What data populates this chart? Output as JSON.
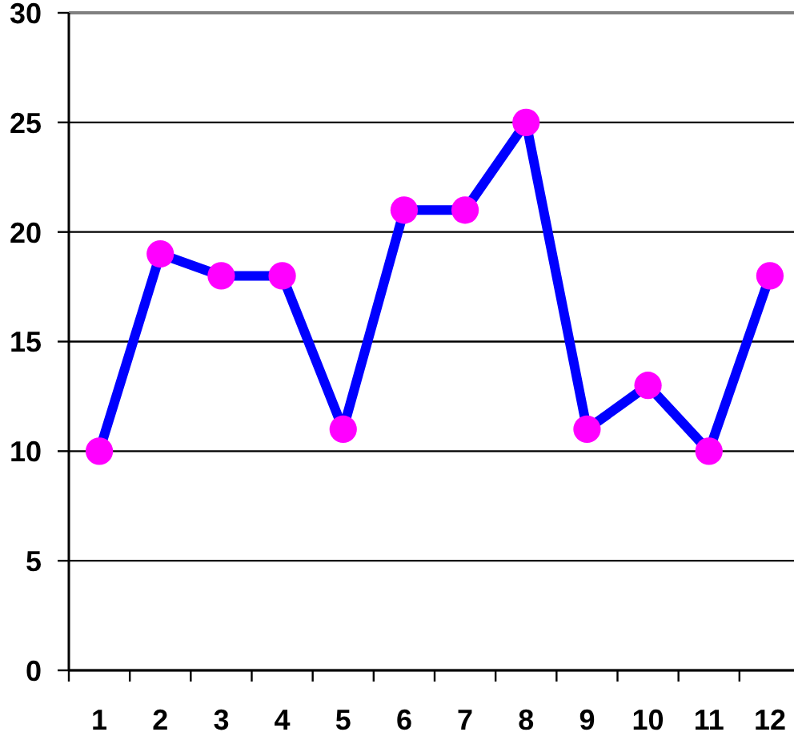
{
  "chart_data": {
    "type": "line",
    "categories": [
      "1",
      "2",
      "3",
      "4",
      "5",
      "6",
      "7",
      "8",
      "9",
      "10",
      "11",
      "12"
    ],
    "series": [
      {
        "color": "#0000ff",
        "colors": [
          "#ff00ff",
          "#ff00ff",
          "#ff00ff",
          "#ff00ff",
          "#ff00ff",
          "#ff00ff",
          "#ff00ff",
          "#ff00ff",
          "#ff00ff",
          "#ff00ff",
          "#ff00ff",
          "#ff00ff"
        ],
        "values": [
          10,
          19,
          18,
          18,
          11,
          21,
          21,
          25,
          11,
          13,
          10,
          18
        ]
      }
    ],
    "ylim": [
      0,
      30
    ],
    "yticks": [
      0,
      5,
      10,
      15,
      20,
      25,
      30
    ],
    "grid": "y",
    "marker": "circle",
    "line_style": "solid"
  }
}
